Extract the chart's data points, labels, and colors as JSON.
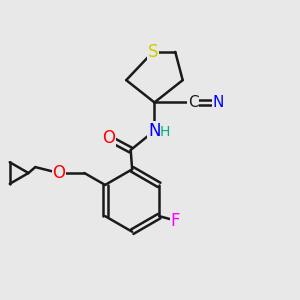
{
  "background_color": "#e8e8e8",
  "bond_color": "#1a1a1a",
  "bond_width": 1.8,
  "atom_colors": {
    "S": "#cccc00",
    "N": "#0000ff",
    "O": "#ff0000",
    "F": "#ff00ff",
    "C_label": "#1a1a1a",
    "N_label": "#0000ff",
    "H_label": "#00aa88"
  },
  "font_size_atoms": 11,
  "font_size_labels": 10
}
